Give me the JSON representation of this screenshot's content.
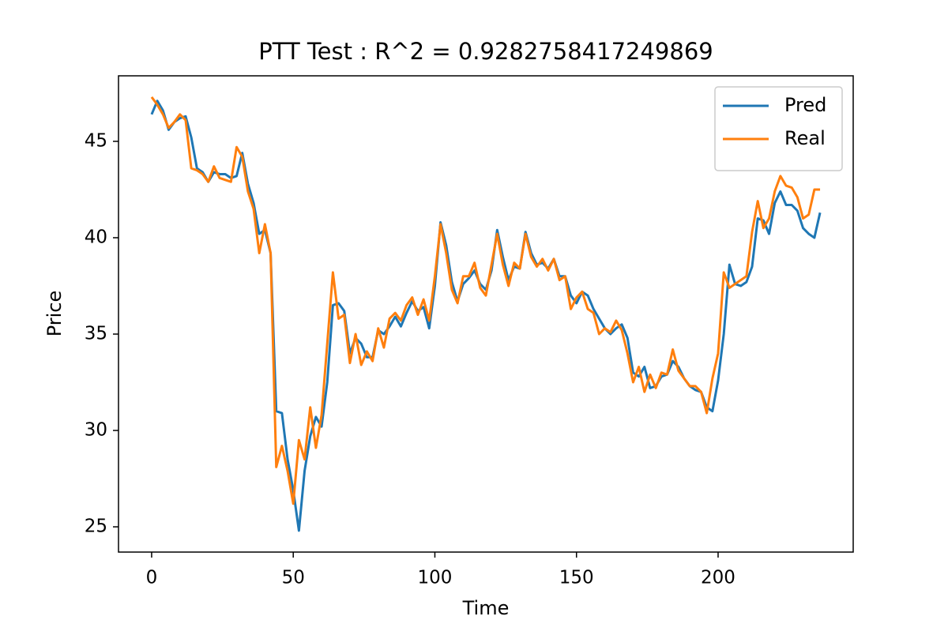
{
  "chart_data": {
    "type": "line",
    "title": "PTT Test : R^2 = 0.9282758417249869",
    "x_label": "Time",
    "y_label": "Price",
    "x": [
      0,
      2,
      4,
      6,
      8,
      10,
      12,
      14,
      16,
      18,
      20,
      22,
      24,
      26,
      28,
      30,
      32,
      34,
      36,
      38,
      40,
      42,
      44,
      46,
      48,
      50,
      52,
      54,
      56,
      58,
      60,
      62,
      64,
      66,
      68,
      70,
      72,
      74,
      76,
      78,
      80,
      82,
      84,
      86,
      88,
      90,
      92,
      94,
      96,
      98,
      100,
      102,
      104,
      106,
      108,
      110,
      112,
      114,
      116,
      118,
      120,
      122,
      124,
      126,
      128,
      130,
      132,
      134,
      136,
      138,
      140,
      142,
      144,
      146,
      148,
      150,
      152,
      154,
      156,
      158,
      160,
      162,
      164,
      166,
      168,
      170,
      172,
      174,
      176,
      178,
      180,
      182,
      184,
      186,
      188,
      190,
      192,
      194,
      196,
      198,
      200,
      202,
      204,
      206,
      208,
      210,
      212,
      214,
      216,
      218,
      220,
      222,
      224,
      226,
      228,
      230,
      232,
      234,
      236
    ],
    "series": [
      {
        "name": "Pred",
        "color": "#1f77b4",
        "values": [
          46.4,
          47.1,
          46.6,
          45.6,
          46.0,
          46.2,
          46.3,
          45.2,
          43.6,
          43.4,
          42.9,
          43.4,
          43.3,
          43.3,
          43.1,
          43.2,
          44.4,
          42.8,
          41.8,
          40.2,
          40.4,
          39.2,
          31.0,
          30.9,
          28.5,
          26.9,
          24.8,
          27.9,
          29.7,
          30.7,
          30.2,
          32.5,
          36.5,
          36.6,
          36.2,
          34.0,
          34.8,
          34.5,
          33.8,
          33.8,
          35.2,
          35.0,
          35.4,
          35.9,
          35.4,
          36.1,
          36.7,
          36.2,
          36.4,
          35.3,
          37.5,
          40.8,
          39.6,
          37.7,
          36.7,
          37.6,
          37.9,
          38.3,
          37.6,
          37.3,
          38.3,
          40.4,
          39.0,
          37.8,
          38.5,
          38.4,
          40.3,
          39.2,
          38.6,
          38.7,
          38.4,
          38.9,
          38.0,
          38.0,
          37.0,
          36.6,
          37.2,
          37.0,
          36.3,
          35.8,
          35.3,
          35.0,
          35.3,
          35.5,
          34.8,
          33.0,
          32.8,
          33.3,
          32.2,
          32.3,
          32.8,
          32.9,
          33.6,
          33.3,
          32.7,
          32.3,
          32.1,
          32.0,
          31.2,
          31.0,
          32.6,
          35.0,
          38.6,
          37.6,
          37.5,
          37.7,
          38.5,
          41.0,
          40.9,
          40.2,
          41.8,
          42.4,
          41.7,
          41.7,
          41.4,
          40.5,
          40.2,
          40.0,
          41.3
        ]
      },
      {
        "name": "Real",
        "color": "#ff7f0e",
        "values": [
          47.3,
          46.9,
          46.4,
          45.7,
          46.0,
          46.4,
          46.1,
          43.6,
          43.5,
          43.3,
          42.9,
          43.7,
          43.1,
          43.0,
          42.9,
          44.7,
          44.2,
          42.4,
          41.5,
          39.2,
          40.7,
          39.2,
          28.1,
          29.2,
          27.9,
          26.2,
          29.5,
          28.5,
          31.2,
          29.1,
          30.8,
          34.5,
          38.2,
          35.8,
          36.0,
          33.5,
          35.0,
          33.4,
          34.1,
          33.6,
          35.3,
          34.3,
          35.8,
          36.1,
          35.7,
          36.5,
          36.9,
          36.0,
          36.8,
          35.7,
          38.0,
          40.7,
          39.2,
          37.3,
          36.6,
          38.0,
          38.0,
          38.7,
          37.4,
          37.0,
          38.6,
          40.2,
          38.6,
          37.5,
          38.7,
          38.4,
          40.2,
          39.0,
          38.5,
          38.9,
          38.3,
          38.9,
          37.8,
          38.0,
          36.3,
          36.9,
          37.2,
          36.3,
          36.1,
          35.0,
          35.3,
          35.1,
          35.7,
          35.2,
          34.0,
          32.5,
          33.3,
          32.0,
          32.9,
          32.2,
          33.0,
          32.9,
          34.2,
          33.1,
          32.7,
          32.3,
          32.3,
          32.0,
          30.9,
          32.7,
          34.0,
          38.2,
          37.4,
          37.6,
          37.8,
          38.0,
          40.3,
          41.9,
          40.5,
          41.0,
          42.4,
          43.2,
          42.7,
          42.6,
          42.1,
          41.0,
          41.2,
          42.5,
          42.5
        ]
      }
    ],
    "xlim": [
      -11.7,
      247.7
    ],
    "ylim": [
      23.69,
      48.4
    ],
    "xticks": [
      0,
      50,
      100,
      150,
      200
    ],
    "yticks": [
      25,
      30,
      35,
      40,
      45
    ],
    "grid": false,
    "legend": "upper right"
  }
}
